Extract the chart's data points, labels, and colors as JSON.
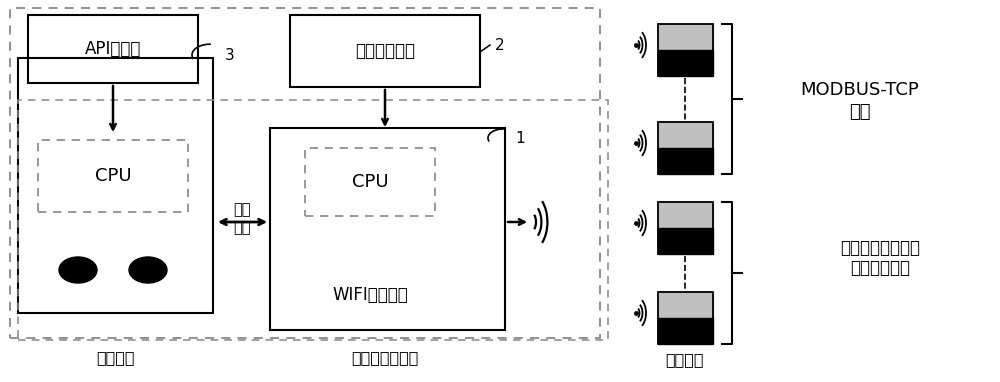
{
  "bg_color": "#ffffff",
  "line_color": "#000000",
  "gray_fill": "#c0c0c0",
  "labels": {
    "api": "API函数库",
    "iot_sw": "物联软件协议",
    "cpu": "CPU",
    "wifi": "WIFI通讯模块",
    "serial_line1": "串行",
    "serial_line2": "通讯",
    "digital": "数字仪表",
    "universal": "通用型物联模块",
    "network": "网络设备",
    "modbus_line1": "MODBUS-TCP",
    "modbus_line2": "协议",
    "private_line1": "私有物联交互协议",
    "private_line2": "命令透传协议",
    "num1": "1",
    "num2": "2",
    "num3": "3"
  },
  "figsize": [
    10.0,
    3.82
  ],
  "dpi": 100
}
